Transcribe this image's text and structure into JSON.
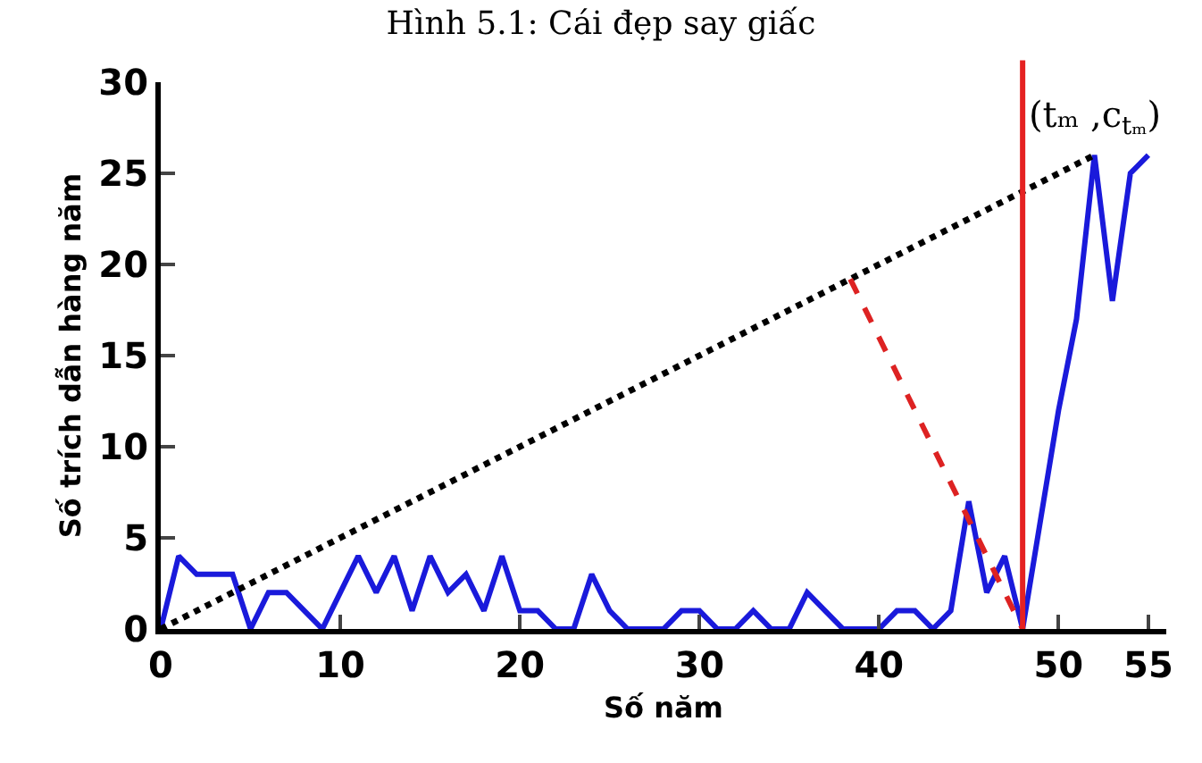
{
  "chart_data": {
    "type": "line",
    "title": "Hình 5.1: Cái đẹp say giấc",
    "xlabel": "Số năm",
    "ylabel": "Số trích dẫn hàng năm",
    "x": [
      0,
      1,
      2,
      3,
      4,
      5,
      6,
      7,
      8,
      9,
      10,
      11,
      12,
      13,
      14,
      15,
      16,
      17,
      18,
      19,
      20,
      21,
      22,
      23,
      24,
      25,
      26,
      27,
      28,
      29,
      30,
      31,
      32,
      33,
      34,
      35,
      36,
      37,
      38,
      39,
      40,
      41,
      42,
      43,
      44,
      45,
      46,
      47,
      48,
      49,
      50,
      51,
      52,
      53,
      54,
      55
    ],
    "series": [
      {
        "color": "#1a1adb",
        "line_style": "solid",
        "values": [
          0,
          4,
          3,
          3,
          3,
          0,
          2,
          2,
          1,
          0,
          2,
          4,
          2,
          4,
          1,
          4,
          2,
          3,
          1,
          4,
          1,
          1,
          0,
          0,
          3,
          1,
          0,
          0,
          0,
          1,
          1,
          0,
          0,
          1,
          0,
          0,
          2,
          1,
          0,
          0,
          0,
          1,
          1,
          0,
          1,
          7,
          2,
          4,
          0,
          6,
          12,
          17,
          26,
          18,
          25,
          26
        ]
      },
      {
        "color": "#000000",
        "line_style": "dotted",
        "x": [
          0,
          52
        ],
        "values": [
          0,
          26
        ]
      },
      {
        "color": "#dd2222",
        "line_style": "dashed",
        "x": [
          38.4,
          48
        ],
        "values": [
          19.2,
          0
        ]
      }
    ],
    "ref_lines": [
      {
        "axis": "x",
        "value": 48,
        "color": "#e52222",
        "line_style": "solid"
      }
    ],
    "annotations": [
      {
        "text": "(tₘ ,c$_{tₘ}$)",
        "x": 52,
        "y": 26
      }
    ],
    "xlim": [
      0,
      56
    ],
    "ylim": [
      0,
      30
    ],
    "xticks": [
      0,
      10,
      20,
      30,
      40,
      50,
      55
    ],
    "yticks": [
      0,
      5,
      10,
      15,
      20,
      25,
      30
    ],
    "grid": false,
    "marker": "none"
  }
}
